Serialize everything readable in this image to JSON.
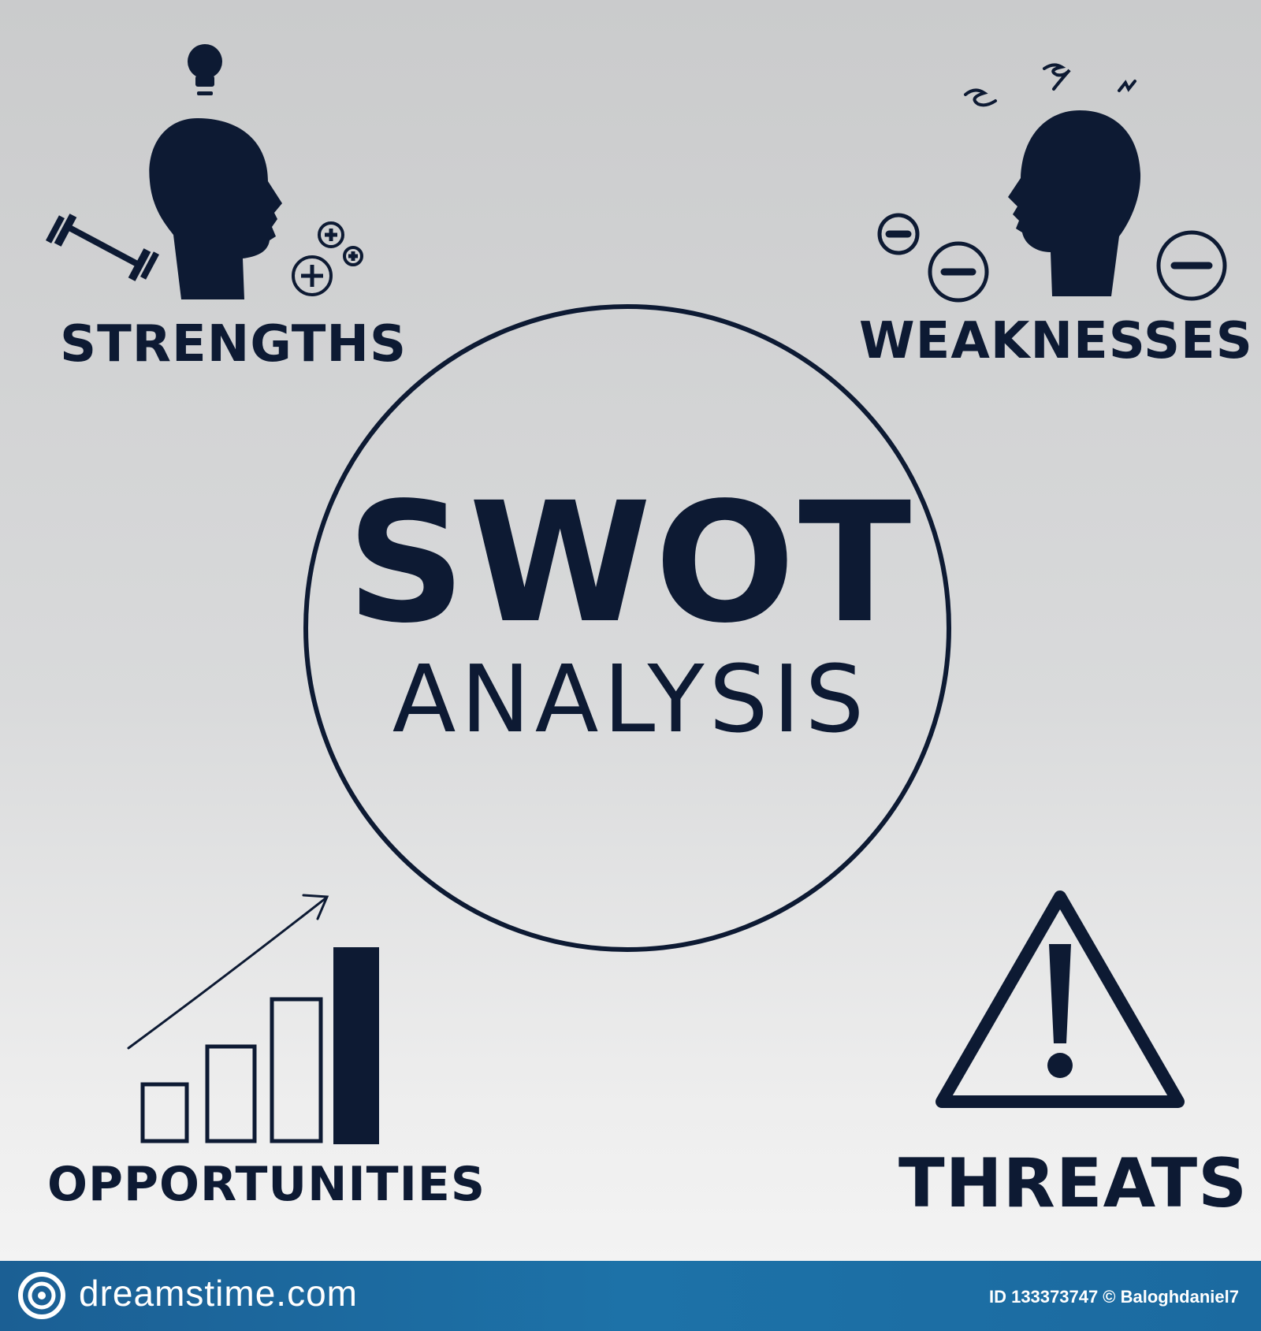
{
  "quadrants": {
    "strengths": "STRENGTHS",
    "weaknesses": "WEAKNESSES",
    "opportunities": "OPPORTUNITIES",
    "threats": "THREATS"
  },
  "center": {
    "title": "SWOT",
    "subtitle": "ANALYSIS"
  },
  "footer": {
    "brand": "dreamstime.com",
    "credit": "ID 133373747 © Baloghdaniel7"
  },
  "colors": {
    "ink": "#0d1a33",
    "footer_bg": "#1d72a8",
    "footer_text": "#ffffff"
  },
  "icons": [
    "head-with-lightbulb-icon",
    "dumbbell-icon",
    "plus-circle-icon",
    "stressed-head-icon",
    "minus-circle-icon",
    "growth-bar-chart-icon",
    "growth-arrow-icon",
    "warning-triangle-icon",
    "dreamstime-swirl-logo"
  ]
}
